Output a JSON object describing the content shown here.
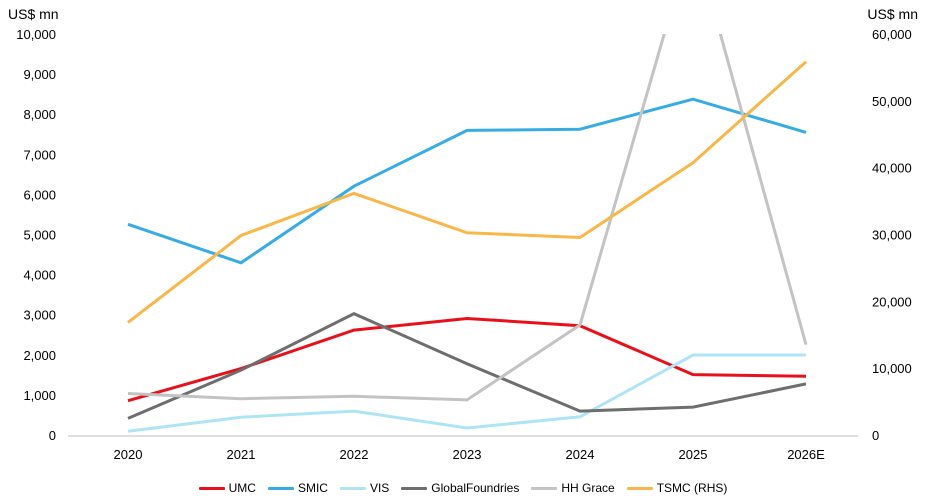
{
  "chart_data": {
    "type": "line",
    "left_axis_unit": "US$ mn",
    "right_axis_unit": "US$ mn",
    "categories": [
      "2020",
      "2021",
      "2022",
      "2023",
      "2024",
      "2025",
      "2026E"
    ],
    "ylim": [
      0,
      10000
    ],
    "y2lim": [
      0,
      60000
    ],
    "yticks": [
      "0",
      "1,000",
      "2,000",
      "3,000",
      "4,000",
      "5,000",
      "6,000",
      "7,000",
      "8,000",
      "9,000",
      "10,000"
    ],
    "y2ticks": [
      "0",
      "10,000",
      "20,000",
      "30,000",
      "40,000",
      "50,000",
      "60,000"
    ],
    "grid": false,
    "legend_position": "bottom",
    "series": [
      {
        "name": "UMC",
        "axis": "left",
        "color": "#e8101a",
        "values": [
          880,
          1680,
          2640,
          2930,
          2750,
          1530,
          1490
        ]
      },
      {
        "name": "SMIC",
        "axis": "left",
        "color": "#37ace4",
        "values": [
          5280,
          4320,
          6230,
          7620,
          7650,
          8400,
          7570
        ]
      },
      {
        "name": "VIS",
        "axis": "left",
        "color": "#aee4f5",
        "values": [
          120,
          470,
          620,
          200,
          480,
          2020,
          2020
        ]
      },
      {
        "name": "GlobalFoundries",
        "axis": "left",
        "color": "#6e6e6e",
        "values": [
          440,
          1640,
          3050,
          1800,
          620,
          720,
          1300
        ]
      },
      {
        "name": "HH Grace",
        "axis": "left",
        "color": "#c3c3c3",
        "values": [
          1060,
          930,
          990,
          900,
          2770,
          12500,
          2280
        ]
      },
      {
        "name": "TSMC (RHS)",
        "axis": "right",
        "color": "#f8b748",
        "values": [
          17000,
          30000,
          36300,
          30400,
          29700,
          40900,
          56000
        ]
      }
    ]
  }
}
